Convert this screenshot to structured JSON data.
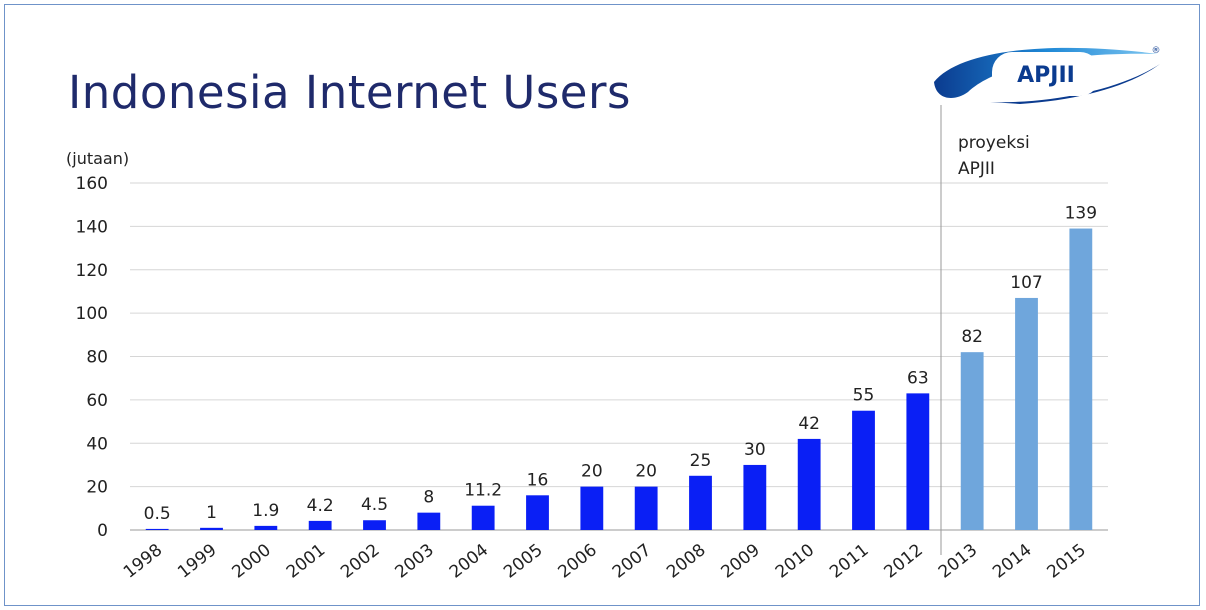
{
  "title": "Indonesia Internet Users",
  "logo": {
    "text": "APJII",
    "mark": "registered-mark",
    "registered": "®"
  },
  "projection_note": [
    "proyeksi",
    "APJII"
  ],
  "colors": {
    "actual": "#0a1ff5",
    "projection": "#6fa6dc",
    "title": "#1f2a6b",
    "grid": "#d6d6d6"
  },
  "chart_data": {
    "type": "bar",
    "title": "Indonesia Internet Users",
    "ylabel": "(jutaan)",
    "xlabel": "",
    "ylim": [
      0,
      160
    ],
    "yticks": [
      0,
      20,
      40,
      60,
      80,
      100,
      120,
      140,
      160
    ],
    "grid": true,
    "categories": [
      "1998",
      "1999",
      "2000",
      "2001",
      "2002",
      "2003",
      "2004",
      "2005",
      "2006",
      "2007",
      "2008",
      "2009",
      "2010",
      "2011",
      "2012",
      "2013",
      "2014",
      "2015"
    ],
    "series": [
      {
        "values": [
          0.5,
          1,
          1.9,
          4.2,
          4.5,
          8,
          11.2,
          16,
          20,
          20,
          25,
          30,
          42,
          55,
          63,
          82,
          107,
          139
        ],
        "value_labels": [
          "0.5",
          "1",
          "1.9",
          "4.2",
          "4.5",
          "8",
          "11.2",
          "16",
          "20",
          "20",
          "25",
          "30",
          "42",
          "55",
          "63",
          "82",
          "107",
          "139"
        ]
      }
    ],
    "projection_start": "2013"
  }
}
